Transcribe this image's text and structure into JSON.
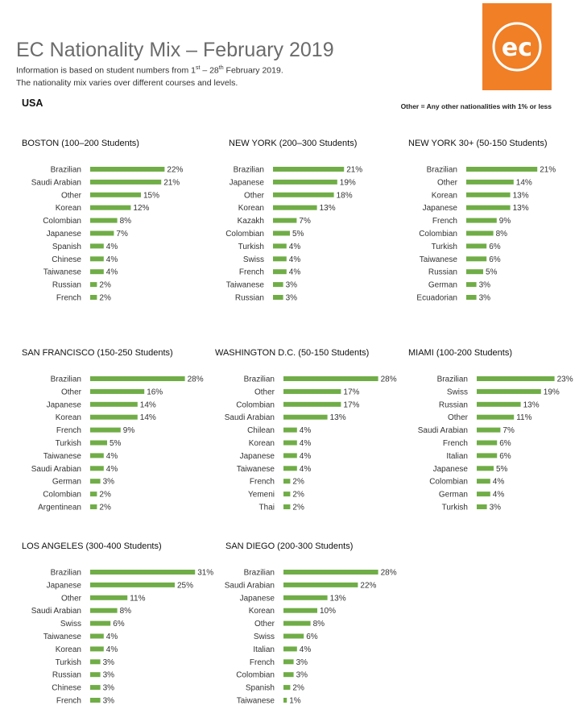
{
  "header": {
    "title": "EC Nationality Mix – February 2019",
    "info_prefix": "Information is based on student numbers from 1",
    "info_sup1": "st",
    "info_mid": " – 28",
    "info_sup2": "th",
    "info_suffix": " February 2019.",
    "info_line2": "The nationality mix varies over different courses and levels.",
    "region": "USA",
    "note": "Other = Any other nationalities with 1% or less",
    "logo_text": "ec",
    "logo_color": "#f07f26"
  },
  "bar_color": "#70ad47",
  "chart_data": [
    {
      "type": "bar",
      "title": "BOSTON (100–200 Students)",
      "categories": [
        "Brazilian",
        "Saudi Arabian",
        "Other",
        "Korean",
        "Colombian",
        "Japanese",
        "Spanish",
        "Chinese",
        "Taiwanese",
        "Russian",
        "French"
      ],
      "values": [
        22,
        21,
        15,
        12,
        8,
        7,
        4,
        4,
        4,
        2,
        2
      ],
      "labels": [
        "22%",
        "21%",
        "15%",
        "12%",
        "8%",
        "7%",
        "4%",
        "4%",
        "4%",
        "2%",
        "2%"
      ]
    },
    {
      "type": "bar",
      "title": "NEW YORK (200–300 Students)",
      "categories": [
        "Brazilian",
        "Japanese",
        "Other",
        "Korean",
        "Kazakh",
        "Colombian",
        "Turkish",
        "Swiss",
        "French",
        "Taiwanese",
        "Russian"
      ],
      "values": [
        21,
        19,
        18,
        13,
        7,
        5,
        4,
        4,
        4,
        3,
        3
      ],
      "labels": [
        "21%",
        "19%",
        "18%",
        "13%",
        "7%",
        "5%",
        "4%",
        "4%",
        "4%",
        "3%",
        "3%"
      ]
    },
    {
      "type": "bar",
      "title": "NEW YORK 30+ (50-150 Students)",
      "categories": [
        "Brazilian",
        "Other",
        "Korean",
        "Japanese",
        "French",
        "Colombian",
        "Turkish",
        "Taiwanese",
        "Russian",
        "German",
        "Ecuadorian"
      ],
      "values": [
        21,
        14,
        13,
        13,
        9,
        8,
        6,
        6,
        5,
        3,
        3
      ],
      "labels": [
        "21%",
        "14%",
        "13%",
        "13%",
        "9%",
        "8%",
        "6%",
        "6%",
        "5%",
        "3%",
        "3%"
      ]
    },
    {
      "type": "bar",
      "title": "SAN FRANCISCO (150-250 Students)",
      "categories": [
        "Brazilian",
        "Other",
        "Japanese",
        "Korean",
        "French",
        "Turkish",
        "Taiwanese",
        "Saudi Arabian",
        "German",
        "Colombian",
        "Argentinean"
      ],
      "values": [
        28,
        16,
        14,
        14,
        9,
        5,
        4,
        4,
        3,
        2,
        2
      ],
      "labels": [
        "28%",
        "16%",
        "14%",
        "14%",
        "9%",
        "5%",
        "4%",
        "4%",
        "3%",
        "2%",
        "2%"
      ]
    },
    {
      "type": "bar",
      "title": "WASHINGTON D.C. (50-150 Students)",
      "categories": [
        "Brazilian",
        "Other",
        "Colombian",
        "Saudi Arabian",
        "Chilean",
        "Korean",
        "Japanese",
        "Taiwanese",
        "French",
        "Yemeni",
        "Thai"
      ],
      "values": [
        28,
        17,
        17,
        13,
        4,
        4,
        4,
        4,
        2,
        2,
        2
      ],
      "labels": [
        "28%",
        "17%",
        "17%",
        "13%",
        "4%",
        "4%",
        "4%",
        "4%",
        "2%",
        "2%",
        "2%"
      ]
    },
    {
      "type": "bar",
      "title": "MIAMI (100-200 Students)",
      "categories": [
        "Brazilian",
        "Swiss",
        "Russian",
        "Other",
        "Saudi Arabian",
        "French",
        "Italian",
        "Japanese",
        "Colombian",
        "German",
        "Turkish"
      ],
      "values": [
        23,
        19,
        13,
        11,
        7,
        6,
        6,
        5,
        4,
        4,
        3
      ],
      "labels": [
        "23%",
        "19%",
        "13%",
        "11%",
        "7%",
        "6%",
        "6%",
        "5%",
        "4%",
        "4%",
        "3%"
      ]
    },
    {
      "type": "bar",
      "title": "LOS ANGELES (300-400 Students)",
      "categories": [
        "Brazilian",
        "Japanese",
        "Other",
        "Saudi Arabian",
        "Swiss",
        "Taiwanese",
        "Korean",
        "Turkish",
        "Russian",
        "Chinese",
        "French"
      ],
      "values": [
        31,
        25,
        11,
        8,
        6,
        4,
        4,
        3,
        3,
        3,
        3
      ],
      "labels": [
        "31%",
        "25%",
        "11%",
        "8%",
        "6%",
        "4%",
        "4%",
        "3%",
        "3%",
        "3%",
        "3%"
      ]
    },
    {
      "type": "bar",
      "title": "SAN DIEGO (200-300 Students)",
      "categories": [
        "Brazilian",
        "Saudi Arabian",
        "Japanese",
        "Korean",
        "Other",
        "Swiss",
        "Italian",
        "French",
        "Colombian",
        "Spanish",
        "Taiwanese"
      ],
      "values": [
        28,
        22,
        13,
        10,
        8,
        6,
        4,
        3,
        3,
        2,
        1
      ],
      "labels": [
        "28%",
        "22%",
        "13%",
        "10%",
        "8%",
        "6%",
        "4%",
        "3%",
        "3%",
        "2%",
        "1%"
      ]
    }
  ]
}
